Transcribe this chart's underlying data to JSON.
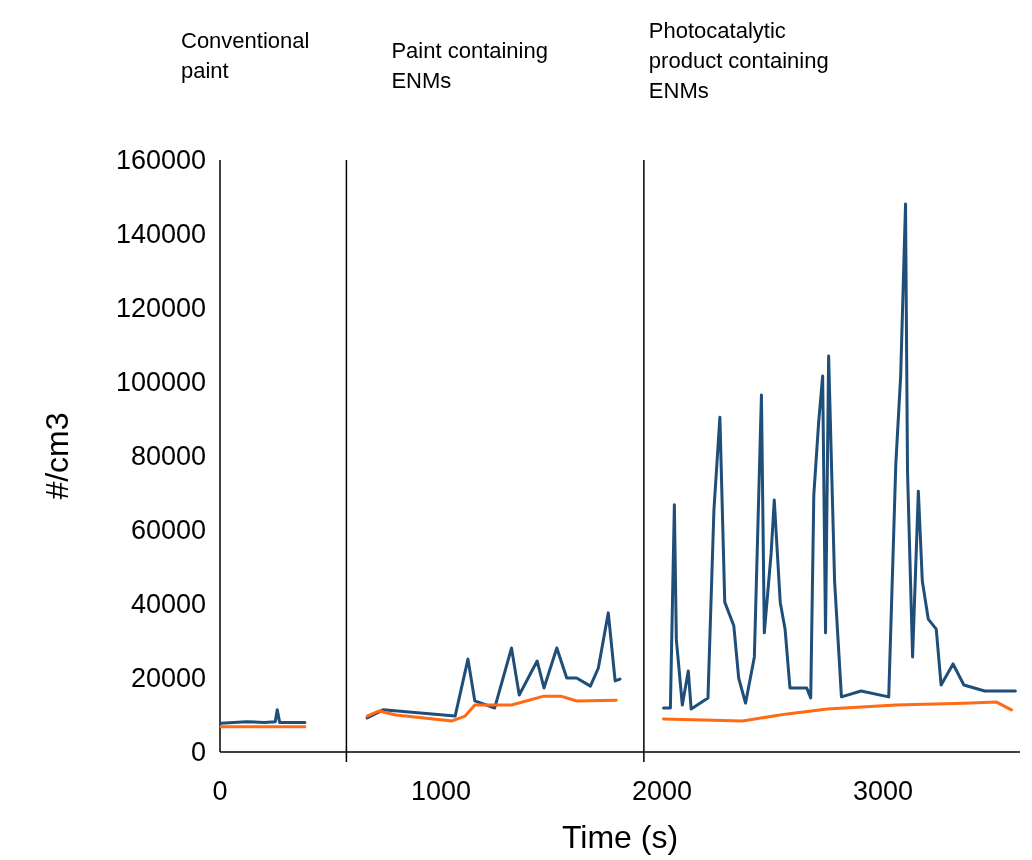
{
  "chart_data": {
    "type": "line",
    "xlabel": "Time (s)",
    "ylabel": "#/cm3",
    "xlim": [
      0,
      3620
    ],
    "xticks": [
      0,
      1000,
      2000,
      3000
    ],
    "ylim": [
      0,
      160000
    ],
    "yticks": [
      0,
      20000,
      40000,
      60000,
      80000,
      100000,
      120000,
      140000,
      160000
    ],
    "grid": false,
    "annotations": [
      "Conventional paint",
      "Paint containing ENMs",
      "Photocatalytic product containing ENMs"
    ],
    "ref_lines": [
      {
        "axis": "x",
        "value": 572,
        "color": "#000000"
      },
      {
        "axis": "x",
        "value": 1918,
        "color": "#000000"
      }
    ],
    "series": [
      {
        "color": "#1f4e79",
        "x": [
          4,
          120,
          200,
          250,
          259,
          270,
          384,
          null,
          666,
          738,
          1064,
          1122,
          1153,
          1243,
          1319,
          1354,
          1435,
          1466,
          1524,
          1569,
          1614,
          1676,
          1712,
          1757,
          1788,
          1810,
          null,
          2007,
          2038,
          2056,
          2065,
          2092,
          2119,
          2132,
          2208,
          2235,
          2262,
          2284,
          2325,
          2347,
          2378,
          2418,
          2450,
          2463,
          2494,
          2508,
          2535,
          2557,
          2579,
          2655,
          2673,
          2687,
          2709,
          2727,
          2740,
          2754,
          2781,
          2812,
          2901,
          3026,
          3058,
          3080,
          3102,
          3111,
          3134,
          3160,
          3178,
          3205,
          3241,
          3263,
          3317,
          3366,
          3460,
          3599
        ],
        "values": [
          7800,
          8200,
          8000,
          8200,
          11400,
          8000,
          8000,
          null,
          9200,
          11400,
          9700,
          25100,
          13800,
          11900,
          28100,
          15400,
          24600,
          17300,
          28100,
          20000,
          20000,
          17800,
          22700,
          37600,
          19200,
          19700,
          null,
          11900,
          11900,
          66800,
          30300,
          12700,
          21900,
          11600,
          14600,
          65400,
          90500,
          40500,
          34100,
          20000,
          13200,
          25700,
          96500,
          32200,
          53800,
          68100,
          40500,
          33200,
          17300,
          17300,
          14600,
          69500,
          89200,
          101600,
          32200,
          107000,
          46200,
          14900,
          16500,
          14900,
          77800,
          101600,
          148100,
          75900,
          25700,
          70500,
          46200,
          35900,
          33200,
          18100,
          23800,
          18100,
          16500,
          16500
        ]
      },
      {
        "color": "#ff6a13",
        "x": [
          4,
          384,
          null,
          666,
          720,
          796,
          1050,
          1109,
          1153,
          1319,
          1466,
          1542,
          1614,
          1793,
          null,
          2007,
          2365,
          2566,
          2749,
          3058,
          3366,
          3514,
          3581
        ],
        "values": [
          6800,
          6800,
          null,
          9700,
          11100,
          10000,
          8400,
          9700,
          12700,
          12700,
          15100,
          15100,
          13800,
          14000,
          null,
          8900,
          8400,
          10300,
          11600,
          12700,
          13200,
          13500,
          11400
        ]
      }
    ]
  }
}
